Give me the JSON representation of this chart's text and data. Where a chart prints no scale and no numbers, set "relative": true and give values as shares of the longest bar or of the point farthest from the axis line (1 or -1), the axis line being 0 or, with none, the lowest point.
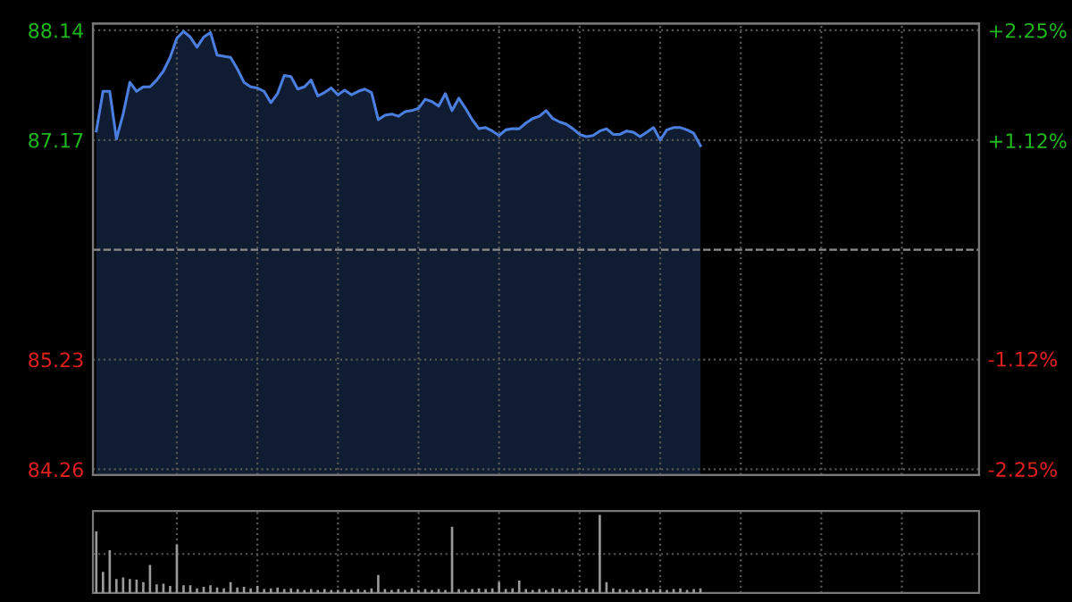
{
  "chart_data": [
    {
      "type": "area",
      "categories": [
        null,
        null,
        null,
        null,
        null,
        null,
        null,
        null,
        null,
        null,
        null,
        null,
        null,
        null,
        null,
        null,
        null,
        null,
        null,
        null,
        null,
        null,
        null,
        null,
        null,
        null,
        null,
        null,
        null,
        null,
        null,
        null,
        null,
        null,
        null,
        null,
        null,
        null,
        null,
        null,
        null,
        null,
        null,
        null,
        null,
        null,
        null,
        null,
        null,
        null,
        null,
        null,
        null,
        null,
        null,
        null,
        null,
        null,
        null,
        null,
        null,
        null,
        null,
        null,
        null,
        null,
        null,
        null,
        null,
        null,
        null,
        null,
        null,
        null,
        null,
        null,
        null,
        null,
        null,
        null,
        null,
        null,
        null,
        null,
        null,
        null,
        null,
        null,
        null,
        null,
        null,
        null,
        null,
        null,
        null,
        null,
        null,
        null,
        null,
        null,
        null,
        null,
        null,
        null,
        null,
        null,
        null,
        null,
        null,
        null,
        null,
        null,
        null,
        null,
        null,
        null,
        null,
        null,
        null,
        null,
        null,
        null,
        null,
        null,
        null,
        null,
        null,
        null,
        null,
        null,
        null,
        null
      ],
      "series": [
        {
          "color": "#4a7fe0",
          "values": [
            87.25,
            87.6,
            87.6,
            87.18,
            87.4,
            87.68,
            87.6,
            87.64,
            87.64,
            87.7,
            87.78,
            87.9,
            88.07,
            88.13,
            88.08,
            87.99,
            88.08,
            88.12,
            87.92,
            87.91,
            87.9,
            87.8,
            87.68,
            87.64,
            87.63,
            87.6,
            87.5,
            87.58,
            87.74,
            87.73,
            87.62,
            87.64,
            87.7,
            87.56,
            87.59,
            87.63,
            87.57,
            87.61,
            87.57,
            87.6,
            87.62,
            87.59,
            87.35,
            87.39,
            87.4,
            87.38,
            87.42,
            87.43,
            87.45,
            87.53,
            87.51,
            87.47,
            87.58,
            87.43,
            87.54,
            87.45,
            87.35,
            87.27,
            87.28,
            87.25,
            87.21,
            87.26,
            87.27,
            87.27,
            87.32,
            87.36,
            87.38,
            87.43,
            87.36,
            87.33,
            87.31,
            87.27,
            87.22,
            87.2,
            87.21,
            87.25,
            87.27,
            87.22,
            87.22,
            87.25,
            87.24,
            87.2,
            87.24,
            87.28,
            87.17,
            87.26,
            87.28,
            87.28,
            87.26,
            87.23,
            87.12,
            null,
            null,
            null,
            null,
            null,
            null,
            null,
            null,
            null,
            null,
            null,
            null,
            null,
            null,
            null,
            null,
            null,
            null,
            null,
            null,
            null,
            null,
            null,
            null,
            null,
            null,
            null,
            null,
            null,
            null,
            null,
            null,
            null,
            null,
            null,
            null,
            null,
            null,
            null,
            null,
            null
          ]
        }
      ],
      "ylim": [
        84.21,
        88.2
      ],
      "yticks": [
        88.14,
        87.17,
        {
          "value": 86.2,
          "label": null
        },
        85.23,
        84.26
      ],
      "y2lim": [
        -2.31,
        2.32
      ],
      "y2ticks": [
        {
          "value": 2.25,
          "label": "+2.25%"
        },
        {
          "value": 1.12,
          "label": "+1.12%"
        },
        {
          "value": -1.12,
          "label": "-1.12%"
        },
        {
          "value": -2.25,
          "label": "-2.25%"
        }
      ],
      "ref_lines": [
        {
          "axis": "y",
          "value": 86.2,
          "label": null,
          "color": "#8a8a8a",
          "line_style": "dashed"
        }
      ],
      "grid": true
    },
    {
      "type": "bar",
      "relative": true,
      "categories": [
        null,
        null,
        null,
        null,
        null,
        null,
        null,
        null,
        null,
        null,
        null,
        null,
        null,
        null,
        null,
        null,
        null,
        null,
        null,
        null,
        null,
        null,
        null,
        null,
        null,
        null,
        null,
        null,
        null,
        null,
        null,
        null,
        null,
        null,
        null,
        null,
        null,
        null,
        null,
        null,
        null,
        null,
        null,
        null,
        null,
        null,
        null,
        null,
        null,
        null,
        null,
        null,
        null,
        null,
        null,
        null,
        null,
        null,
        null,
        null,
        null,
        null,
        null,
        null,
        null,
        null,
        null,
        null,
        null,
        null,
        null,
        null,
        null,
        null,
        null,
        null,
        null,
        null,
        null,
        null,
        null,
        null,
        null,
        null,
        null,
        null,
        null,
        null,
        null,
        null,
        null,
        null,
        null,
        null,
        null,
        null,
        null,
        null,
        null,
        null,
        null,
        null,
        null,
        null,
        null,
        null,
        null,
        null,
        null,
        null,
        null,
        null,
        null,
        null,
        null,
        null,
        null,
        null,
        null,
        null,
        null,
        null,
        null,
        null,
        null,
        null,
        null,
        null,
        null,
        null,
        null,
        null
      ],
      "series": [
        {
          "color": "#9a9a9a",
          "values": [
            0.79,
            0.27,
            0.55,
            0.18,
            0.2,
            0.18,
            0.17,
            0.14,
            0.36,
            0.11,
            0.12,
            0.09,
            0.62,
            0.1,
            0.1,
            0.06,
            0.08,
            0.1,
            0.07,
            0.06,
            0.14,
            0.07,
            0.08,
            0.06,
            0.09,
            0.05,
            0.06,
            0.07,
            0.05,
            0.06,
            0.05,
            0.04,
            0.05,
            0.04,
            0.05,
            0.04,
            0.04,
            0.05,
            0.04,
            0.05,
            0.04,
            0.06,
            0.23,
            0.05,
            0.04,
            0.05,
            0.04,
            0.06,
            0.04,
            0.05,
            0.04,
            0.05,
            0.04,
            0.85,
            0.05,
            0.04,
            0.05,
            0.06,
            0.05,
            0.06,
            0.14,
            0.05,
            0.06,
            0.16,
            0.05,
            0.04,
            0.05,
            0.04,
            0.06,
            0.05,
            0.04,
            0.05,
            0.04,
            0.06,
            0.05,
            1,
            0.14,
            0.06,
            0.05,
            0.04,
            0.05,
            0.04,
            0.06,
            0.04,
            0.05,
            0.04,
            0.05,
            0.06,
            0.04,
            0.05,
            0.06,
            null,
            null,
            null,
            null,
            null,
            null,
            null,
            null,
            null,
            null,
            null,
            null,
            null,
            null,
            null,
            null,
            null,
            null,
            null,
            null,
            null,
            null,
            null,
            null,
            null,
            null,
            null,
            null,
            null,
            null,
            null,
            null,
            null,
            null,
            null,
            null,
            null,
            null,
            null,
            null,
            null
          ]
        }
      ],
      "grid": true
    }
  ]
}
